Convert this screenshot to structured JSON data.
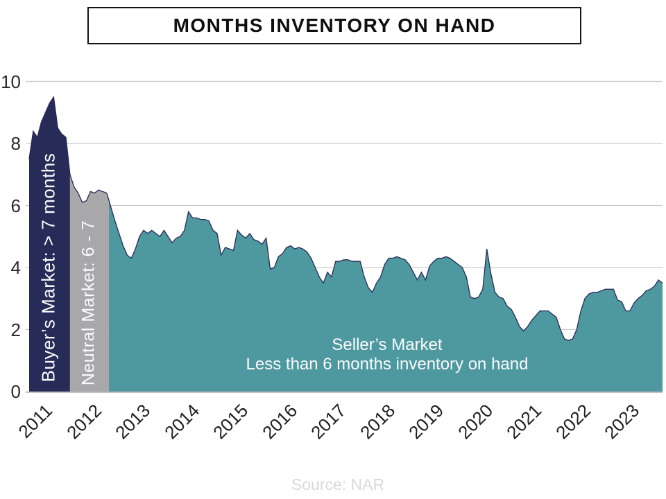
{
  "header": {
    "title": "MONTHS INVENTORY ON HAND"
  },
  "footer": {
    "source": "Source: NAR"
  },
  "chart_data": {
    "type": "area",
    "title": "MONTHS INVENTORY ON HAND",
    "source": "Source: NAR",
    "xlabel": "",
    "ylabel": "",
    "ylim": [
      0,
      10
    ],
    "y_ticks": [
      0,
      2,
      4,
      6,
      8,
      10
    ],
    "x_tick_labels": [
      "2011",
      "2012",
      "2013",
      "2014",
      "2015",
      "2016",
      "2017",
      "2018",
      "2019",
      "2020",
      "2021",
      "2022",
      "2023"
    ],
    "frequency": "monthly",
    "x_start": "2011-01",
    "grid": "horizontal",
    "grid_color": "#cbcbcb",
    "baseline_color": "#b4b4b4",
    "line_color": "#272b57",
    "series": [
      {
        "name": "Months inventory on hand",
        "values": [
          7.5,
          8.4,
          8.2,
          8.7,
          9.0,
          9.3,
          9.5,
          8.5,
          8.3,
          8.2,
          7.0,
          6.6,
          6.4,
          6.1,
          6.15,
          6.45,
          6.4,
          6.5,
          6.45,
          6.4,
          5.95,
          5.5,
          5.1,
          4.7,
          4.4,
          4.3,
          4.6,
          5.0,
          5.2,
          5.1,
          5.2,
          5.1,
          5.0,
          5.2,
          5.0,
          4.8,
          4.95,
          5.0,
          5.2,
          5.8,
          5.6,
          5.6,
          5.55,
          5.55,
          5.5,
          5.2,
          5.1,
          4.4,
          4.65,
          4.6,
          4.55,
          5.2,
          5.05,
          4.95,
          5.1,
          4.9,
          4.85,
          4.75,
          4.95,
          3.95,
          4.0,
          4.35,
          4.45,
          4.65,
          4.7,
          4.6,
          4.65,
          4.6,
          4.5,
          4.3,
          4.0,
          3.7,
          3.5,
          3.85,
          3.7,
          4.2,
          4.2,
          4.25,
          4.25,
          4.2,
          4.2,
          4.2,
          3.7,
          3.35,
          3.2,
          3.5,
          3.7,
          4.1,
          4.3,
          4.3,
          4.35,
          4.3,
          4.25,
          4.1,
          3.85,
          3.6,
          3.85,
          3.6,
          4.05,
          4.2,
          4.3,
          4.3,
          4.35,
          4.3,
          4.2,
          4.1,
          4.0,
          3.7,
          3.05,
          3.0,
          3.05,
          3.3,
          4.6,
          3.8,
          3.2,
          3.05,
          3.0,
          2.75,
          2.65,
          2.4,
          2.1,
          1.95,
          2.1,
          2.3,
          2.45,
          2.6,
          2.6,
          2.6,
          2.5,
          2.4,
          2.0,
          1.7,
          1.65,
          1.7,
          2.0,
          2.6,
          3.0,
          3.15,
          3.2,
          3.2,
          3.25,
          3.3,
          3.3,
          3.3,
          2.95,
          2.9,
          2.6,
          2.6,
          2.85,
          3.0,
          3.1,
          3.25,
          3.3,
          3.4,
          3.6,
          3.5
        ]
      }
    ],
    "segments": [
      {
        "name": "buyers-market",
        "label": "Buyer’s Market: > 7 months",
        "color": "#272b57",
        "threshold": "> 7 months",
        "end_month_index": 10
      },
      {
        "name": "neutral-market",
        "label": "Neutral Market: 6 - 7",
        "color": "#a8a8ab",
        "threshold": "6 - 7 months",
        "end_month_index": 19.5
      },
      {
        "name": "sellers-market",
        "label_line1": "Seller’s Market",
        "label_line2": "Less than 6 months inventory on hand",
        "color": "#4e98a0",
        "threshold": "< 6 months",
        "end_month_index": 155
      }
    ]
  }
}
